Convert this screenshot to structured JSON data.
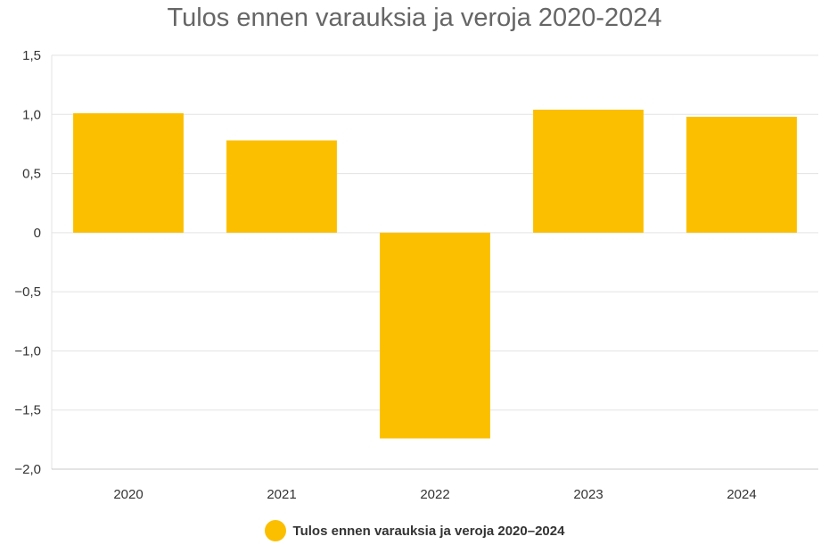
{
  "chart_data": {
    "type": "bar",
    "title": "Tulos ennen varauksia ja veroja 2020-2024",
    "categories": [
      "2020",
      "2021",
      "2022",
      "2023",
      "2024"
    ],
    "series": [
      {
        "name": "Tulos ennen varauksia ja veroja 2020–2024",
        "values": [
          1.01,
          0.78,
          -1.74,
          1.04,
          0.98
        ],
        "color": "#FBBF00"
      }
    ],
    "ylim": [
      -2.0,
      1.5
    ],
    "yticks": [
      1.5,
      1.0,
      0.5,
      0,
      -0.5,
      -1.0,
      -1.5,
      -2.0
    ],
    "ytick_labels": [
      "1,5",
      "1,0",
      "0,5",
      "0",
      "−0,5",
      "−1,0",
      "−1,5",
      "−2,0"
    ],
    "xlabel": "",
    "ylabel": "",
    "grid": true,
    "legend_position": "bottom"
  }
}
